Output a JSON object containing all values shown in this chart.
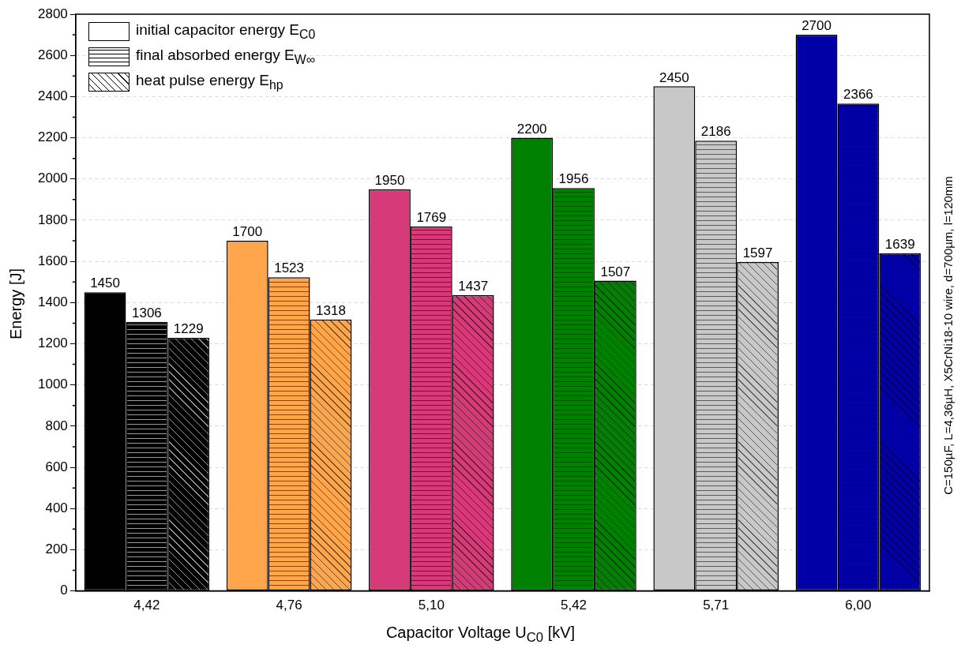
{
  "chart_data": {
    "type": "bar",
    "xlabel": "Capacitor Voltage U$_{C0}$ [kV]",
    "ylabel": "Energy [J]",
    "categories": [
      "4,42",
      "4,76",
      "5,10",
      "5,42",
      "5,71",
      "6,00"
    ],
    "series": [
      {
        "name": "initial capacitor energy E$_{C0}$",
        "colors": [
          "#000000",
          "#ffa64d",
          "#d63a78",
          "#008000",
          "#c8c8c8",
          "#0000a6"
        ],
        "values": [
          1450,
          1700,
          1950,
          2200,
          2450,
          2700
        ]
      },
      {
        "name": "final absorbed energy  E$_{W∞}$",
        "colors": [
          "#000000",
          "#ffa64d",
          "#d63a78",
          "#008000",
          "#c8c8c8",
          "#0000a6"
        ],
        "values": [
          1306,
          1523,
          1769,
          1956,
          2186,
          2366
        ]
      },
      {
        "name": "heat pulse energy E$_{hp}$",
        "colors": [
          "#000000",
          "#ffa64d",
          "#d63a78",
          "#008000",
          "#c8c8c8",
          "#0000a6"
        ],
        "values": [
          1229,
          1318,
          1437,
          1507,
          1597,
          1639
        ]
      }
    ],
    "ylim": [
      0,
      2800
    ],
    "yticks": [
      0,
      200,
      400,
      600,
      800,
      1000,
      1200,
      1400,
      1600,
      1800,
      2000,
      2200,
      2400,
      2600,
      2800
    ],
    "grid": "y",
    "legend": "top left",
    "data_labels": true,
    "annotations": [
      "C=150µF, L=4,36µH, X5CrNi18-10 wire, d=700µm, l=120mm"
    ]
  }
}
